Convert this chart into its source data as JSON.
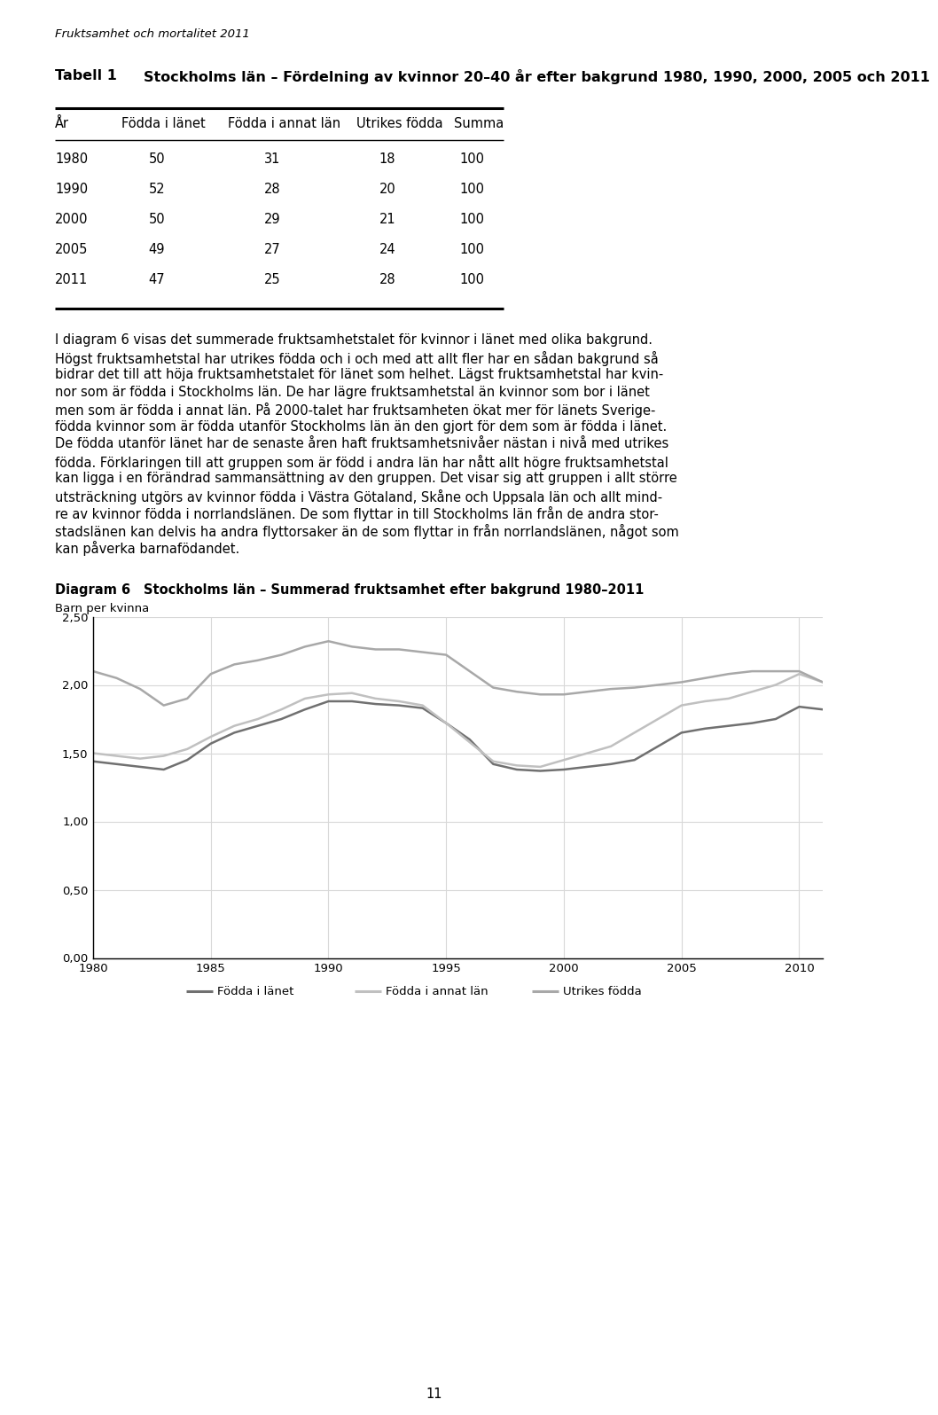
{
  "page_title": "Fruktsamhet och mortalitet 2011",
  "table_headers": [
    "År",
    "Födda i länet",
    "Födda i annat län",
    "Utrikes födda",
    "Summa"
  ],
  "table_data": [
    [
      "1980",
      "50",
      "31",
      "18",
      "100"
    ],
    [
      "1990",
      "52",
      "28",
      "20",
      "100"
    ],
    [
      "2000",
      "50",
      "29",
      "21",
      "100"
    ],
    [
      "2005",
      "49",
      "27",
      "24",
      "100"
    ],
    [
      "2011",
      "47",
      "25",
      "28",
      "100"
    ]
  ],
  "body_text": "I diagram 6 visas det summerade fruktsamhetstalet för kvinnor i länet med olika bakgrund. Högst fruktsamhetstal har utrikes födda och i och med att allt fler har en sådan bakgrund så bidrar det till att höja fruktsamhetstalet för länet som helhet. Lägst fruktsamhetstal har kvin-nor som är födda i Stockholms län. De har lägre fruktsamhetstal än kvinnor som bor i länet men som är födda i annat län. På 2000-talet har fruktsamheten ökat mer för länets Sverige-födda kvinnor som är födda utanför Stockholms län än den gjort för dem som är födda i länet. De födda utanför länet har de senaste åren haft fruktsamhetsnivåer nästan i nivå med utrikes födda. Förklaringen till att gruppen som är född i andra län har nått allt högre fruktsamhetstal kan ligga i en förändrad sammansättning av den gruppen. Det visar sig att gruppen i allt större utsträckning utgörs av kvinnor födda i Västra Götaland, Skåne och Uppsala län och allt mind-re av kvinnor födda i norrlandslänen. De som flyttar in till Stockholms län från de andra stor-stadslänen kan delvis ha andra flyttorsaker än de som flyttar in från norrlandslänen, något som kan påverka barnafödandet.",
  "body_lines": [
    "I diagram 6 visas det summerade fruktsamhetstalet för kvinnor i länet med olika bakgrund.",
    "Högst fruktsamhetstal har utrikes födda och i och med att allt fler har en sådan bakgrund så",
    "bidrar det till att höja fruktsamhetstalet för länet som helhet. Lägst fruktsamhetstal har kvin-",
    "nor som är födda i Stockholms län. De har lägre fruktsamhetstal än kvinnor som bor i länet",
    "men som är födda i annat län. På 2000-talet har fruktsamheten ökat mer för länets Sverige-",
    "födda kvinnor som är födda utanför Stockholms län än den gjort för dem som är födda i länet.",
    "De födda utanför länet har de senaste åren haft fruktsamhetsnivåer nästan i nivå med utrikes",
    "födda. Förklaringen till att gruppen som är född i andra län har nått allt högre fruktsamhetstal",
    "kan ligga i en förändrad sammansättning av den gruppen. Det visar sig att gruppen i allt större",
    "utsträckning utgörs av kvinnor födda i Västra Götaland, Skåne och Uppsala län och allt mind-",
    "re av kvinnor födda i norrlandslänen. De som flyttar in till Stockholms län från de andra stor-",
    "stadslänen kan delvis ha andra flyttorsaker än de som flyttar in från norrlandslänen, något som",
    "kan påverka barnafödandet."
  ],
  "diagram_label": "Diagram 6",
  "diagram_subtitle": "Stockholms län – Summerad fruktsamhet efter bakgrund 1980–2011",
  "ylabel": "Barn per kvinna",
  "ylim": [
    0.0,
    2.5
  ],
  "yticks": [
    0.0,
    0.5,
    1.0,
    1.5,
    2.0,
    2.5
  ],
  "ytick_labels": [
    "0,00",
    "0,50",
    "1,00",
    "1,50",
    "2,00",
    "2,50"
  ],
  "xlim": [
    1980,
    2011
  ],
  "xticks": [
    1980,
    1985,
    1990,
    1995,
    2000,
    2005,
    2010
  ],
  "years": [
    1980,
    1981,
    1982,
    1983,
    1984,
    1985,
    1986,
    1987,
    1988,
    1989,
    1990,
    1991,
    1992,
    1993,
    1994,
    1995,
    1996,
    1997,
    1998,
    1999,
    2000,
    2001,
    2002,
    2003,
    2004,
    2005,
    2006,
    2007,
    2008,
    2009,
    2010,
    2011
  ],
  "fodda_i_lanet": [
    1.44,
    1.42,
    1.4,
    1.38,
    1.45,
    1.57,
    1.65,
    1.7,
    1.75,
    1.82,
    1.88,
    1.88,
    1.86,
    1.85,
    1.83,
    1.72,
    1.6,
    1.42,
    1.38,
    1.37,
    1.38,
    1.4,
    1.42,
    1.45,
    1.55,
    1.65,
    1.68,
    1.7,
    1.72,
    1.75,
    1.84,
    1.82
  ],
  "fodda_i_annat_lan": [
    1.5,
    1.48,
    1.46,
    1.48,
    1.53,
    1.62,
    1.7,
    1.75,
    1.82,
    1.9,
    1.93,
    1.94,
    1.9,
    1.88,
    1.85,
    1.72,
    1.58,
    1.44,
    1.41,
    1.4,
    1.45,
    1.5,
    1.55,
    1.65,
    1.75,
    1.85,
    1.88,
    1.9,
    1.95,
    2.0,
    2.08,
    2.02
  ],
  "utrikes_fodda": [
    2.1,
    2.05,
    1.97,
    1.85,
    1.9,
    2.08,
    2.15,
    2.18,
    2.22,
    2.28,
    2.32,
    2.28,
    2.26,
    2.26,
    2.24,
    2.22,
    2.1,
    1.98,
    1.95,
    1.93,
    1.93,
    1.95,
    1.97,
    1.98,
    2.0,
    2.02,
    2.05,
    2.08,
    2.1,
    2.1,
    2.1,
    2.02
  ],
  "line_color_lanet": "#707070",
  "line_color_annat": "#c0c0c0",
  "line_color_utrikes": "#a8a8a8",
  "legend_labels": [
    "Födda i länet",
    "Födda i annat län",
    "Utrikes födda"
  ],
  "page_number": "11",
  "background_color": "#ffffff",
  "grid_color": "#d8d8d8",
  "tabell_label": "Tabell 1",
  "tabell_subtitle": "Stockholms län – Fördelning av kvinnor 20–40 år efter bakgrund 1980, 1990, 2000, 2005 och 2011"
}
